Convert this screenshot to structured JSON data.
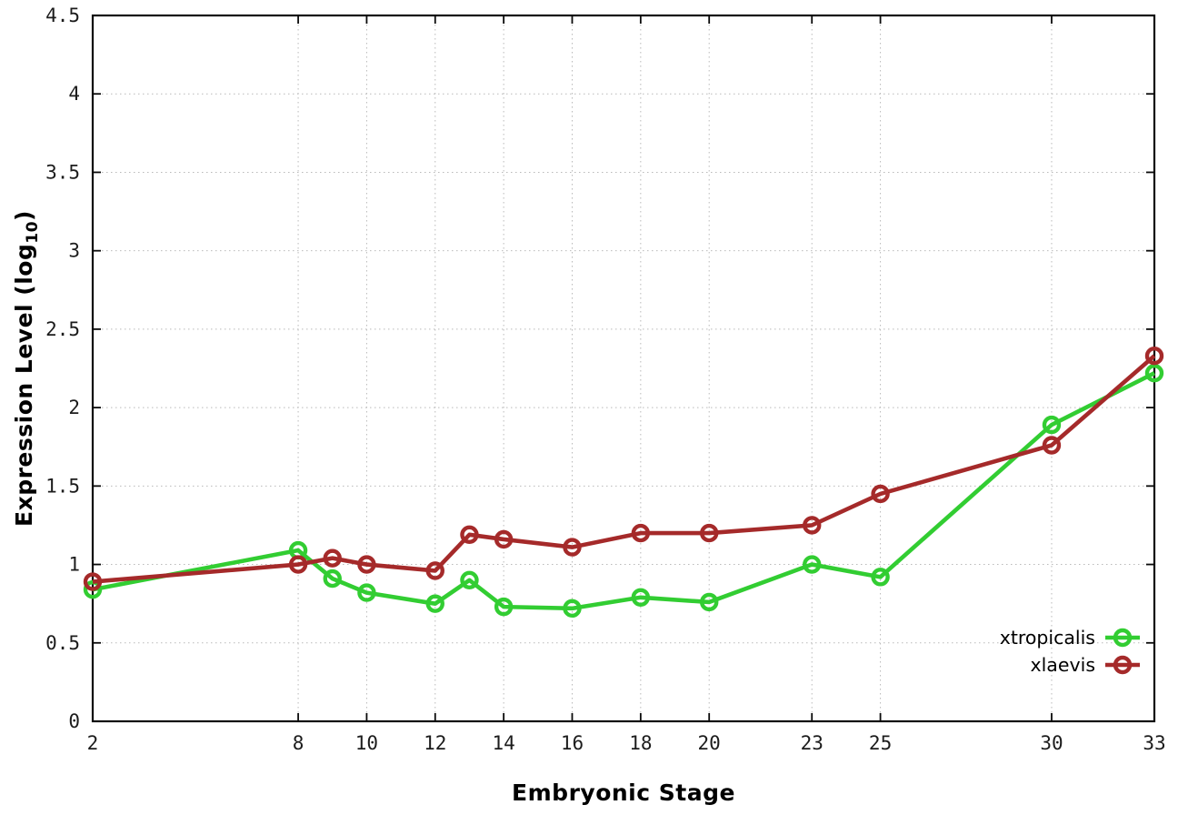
{
  "chart_data": {
    "type": "line",
    "title": "",
    "xlabel": "Embryonic Stage",
    "ylabel": {
      "prefix": "Expression Level (log",
      "sub": "10",
      "suffix": ")"
    },
    "xlim": [
      2,
      33
    ],
    "ylim": [
      0,
      4.5
    ],
    "x_ticks": [
      2,
      8,
      10,
      12,
      14,
      16,
      18,
      20,
      23,
      25,
      30,
      33
    ],
    "y_ticks": [
      0,
      0.5,
      1,
      1.5,
      2,
      2.5,
      3,
      3.5,
      4,
      4.5
    ],
    "grid": true,
    "legend_position": "inside-bottom-right",
    "x": [
      2,
      8,
      9,
      10,
      12,
      13,
      14,
      16,
      18,
      20,
      23,
      25,
      30,
      33
    ],
    "series": [
      {
        "name": "xtropicalis",
        "color": "#32cd32",
        "values": [
          0.84,
          1.09,
          0.91,
          0.82,
          0.75,
          0.9,
          0.73,
          0.72,
          0.79,
          0.76,
          1.0,
          0.92,
          1.89,
          2.22
        ]
      },
      {
        "name": "xlaevis",
        "color": "#a52a2a",
        "values": [
          0.89,
          1.0,
          1.04,
          1.0,
          0.96,
          1.19,
          1.16,
          1.11,
          1.2,
          1.2,
          1.25,
          1.45,
          1.76,
          2.33
        ]
      }
    ]
  }
}
